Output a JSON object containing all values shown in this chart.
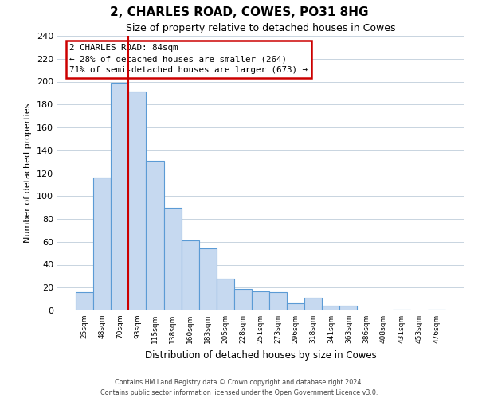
{
  "title": "2, CHARLES ROAD, COWES, PO31 8HG",
  "subtitle": "Size of property relative to detached houses in Cowes",
  "xlabel": "Distribution of detached houses by size in Cowes",
  "ylabel": "Number of detached properties",
  "bar_labels": [
    "25sqm",
    "48sqm",
    "70sqm",
    "93sqm",
    "115sqm",
    "138sqm",
    "160sqm",
    "183sqm",
    "205sqm",
    "228sqm",
    "251sqm",
    "273sqm",
    "296sqm",
    "318sqm",
    "341sqm",
    "363sqm",
    "386sqm",
    "408sqm",
    "431sqm",
    "453sqm",
    "476sqm"
  ],
  "bar_values": [
    16,
    116,
    199,
    191,
    131,
    90,
    61,
    54,
    28,
    19,
    17,
    16,
    6,
    11,
    4,
    4,
    0,
    0,
    1,
    0,
    1
  ],
  "bar_color": "#c6d9f0",
  "bar_edge_color": "#5b9bd5",
  "highlight_color": "#cc0000",
  "ylim": [
    0,
    240
  ],
  "yticks": [
    0,
    20,
    40,
    60,
    80,
    100,
    120,
    140,
    160,
    180,
    200,
    220,
    240
  ],
  "property_label": "2 CHARLES ROAD: 84sqm",
  "annotation_line1": "← 28% of detached houses are smaller (264)",
  "annotation_line2": "71% of semi-detached houses are larger (673) →",
  "annotation_box_color": "#ffffff",
  "annotation_box_edge_color": "#cc0000",
  "vline_x": 2.5,
  "footer_line1": "Contains HM Land Registry data © Crown copyright and database right 2024.",
  "footer_line2": "Contains public sector information licensed under the Open Government Licence v3.0.",
  "grid_color": "#c8d4e0",
  "background_color": "#ffffff"
}
